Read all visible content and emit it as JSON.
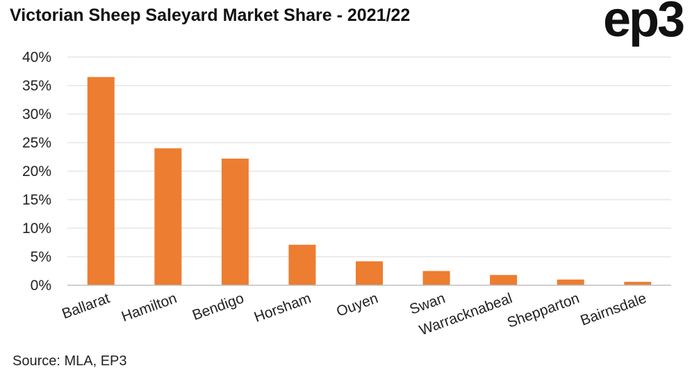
{
  "title": "Victorian Sheep Saleyard Market Share - 2021/22",
  "logo_text": "ep3",
  "source": "Source: MLA, EP3",
  "colors": {
    "bar": "#ED7D31",
    "grid": "#D9D9D9",
    "axis": "#BFBFBF",
    "text": "#222222"
  },
  "chart_data": {
    "type": "bar",
    "title": "Victorian Sheep Saleyard Market Share - 2021/22",
    "categories": [
      "Ballarat",
      "Hamilton",
      "Bendigo",
      "Horsham",
      "Ouyen",
      "Swan",
      "Warracknabeal",
      "Shepparton",
      "Bairnsdale"
    ],
    "values": [
      36.5,
      24.0,
      22.2,
      7.1,
      4.2,
      2.5,
      1.8,
      1.0,
      0.6
    ],
    "ylim": [
      0,
      40
    ],
    "yticks": [
      0,
      5,
      10,
      15,
      20,
      25,
      30,
      35,
      40
    ],
    "ytick_labels": [
      "0%",
      "5%",
      "10%",
      "15%",
      "20%",
      "25%",
      "30%",
      "35%",
      "40%"
    ],
    "xlabel": "",
    "ylabel": "",
    "grid": true,
    "legend": "none"
  }
}
